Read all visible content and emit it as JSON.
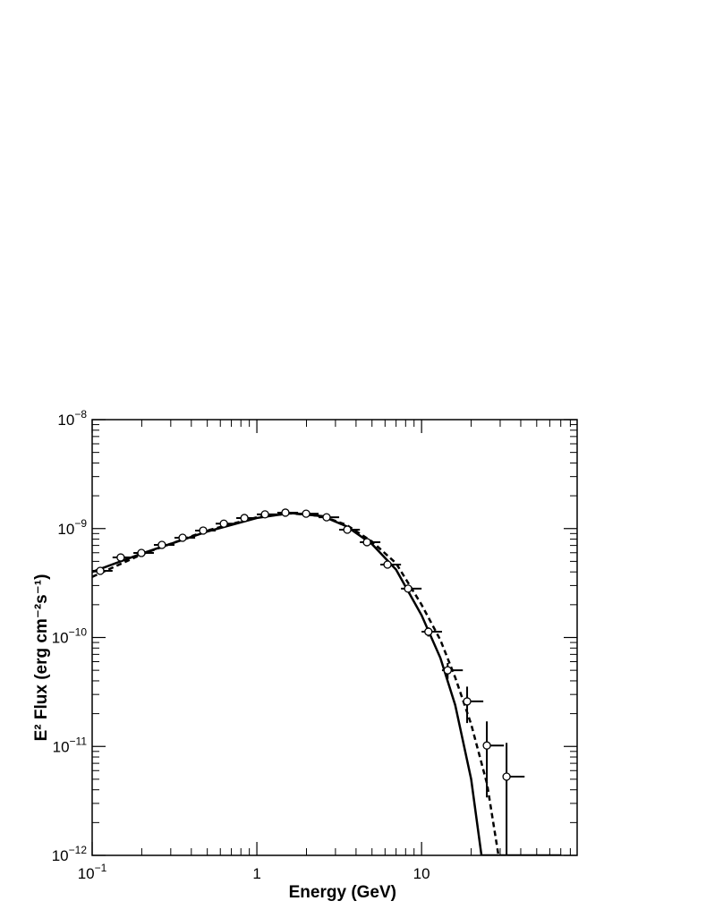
{
  "chart_data": {
    "type": "scatter",
    "xlabel": "Energy (GeV)",
    "ylabel": "E² Flux (erg cm⁻²s⁻¹)",
    "xlog": true,
    "ylog": true,
    "color": "#000000",
    "xlim": [
      0.1,
      88
    ],
    "ylim": [
      1e-12,
      1e-08
    ],
    "xticks": [
      {
        "value": 0.1,
        "label": "10",
        "exponent": "−1"
      },
      1,
      10
    ],
    "yticks": [
      {
        "value": 1e-12,
        "label": "10",
        "exponent": "−12"
      },
      {
        "value": 1e-11,
        "label": "10",
        "exponent": "−11"
      },
      {
        "value": 1e-10,
        "label": "10",
        "exponent": "−10"
      },
      {
        "value": 1e-09,
        "label": "10",
        "exponent": "−9"
      },
      {
        "value": 1e-08,
        "label": "10",
        "exponent": "−8"
      }
    ],
    "xminor": [
      0.2,
      0.3,
      0.4,
      0.5,
      0.6,
      0.7,
      0.8,
      0.9,
      2,
      3,
      4,
      5,
      6,
      7,
      8,
      9,
      20,
      30,
      40,
      50,
      60,
      70,
      80
    ],
    "yminor": [
      2e-12,
      3e-12,
      4e-12,
      5e-12,
      6e-12,
      7e-12,
      8e-12,
      9e-12,
      2e-11,
      3e-11,
      4e-11,
      5e-11,
      6e-11,
      7e-11,
      8e-11,
      9e-11,
      2e-10,
      3e-10,
      4e-10,
      5e-10,
      6e-10,
      7e-10,
      8e-10,
      9e-10,
      2e-09,
      3e-09,
      4e-09,
      5e-09,
      6e-09,
      7e-09,
      8e-09,
      9e-09
    ],
    "series": [
      {
        "type": "errorbar",
        "x": [
          0.112,
          0.149,
          0.199,
          0.265,
          0.354,
          0.472,
          0.63,
          0.84,
          1.12,
          1.49,
          1.99,
          2.65,
          3.54,
          4.66,
          6.21,
          8.28,
          11.0,
          14.4,
          18.9,
          24.9,
          32.8
        ],
        "x_edges": [
          0.1,
          0.133,
          0.178,
          0.237,
          0.316,
          0.422,
          0.562,
          0.75,
          1,
          1.33,
          1.78,
          2.37,
          3.16,
          4.22,
          5.62,
          7.5,
          10,
          13.3,
          17.8,
          23.7,
          31.6,
          42.2
        ],
        "values": [
          4.09e-10,
          5.43e-10,
          5.97e-10,
          7.08e-10,
          8.24e-10,
          9.59e-10,
          1.11e-09,
          1.25e-09,
          1.35e-09,
          1.4e-09,
          1.37e-09,
          1.27e-09,
          9.77e-10,
          7.5e-10,
          4.67e-10,
          2.81e-10,
          1.13e-10,
          5e-11,
          2.59e-11,
          1.02e-11,
          5.28e-12
        ],
        "errors": [
          1.5e-11,
          1.5e-11,
          1.5e-11,
          1.5e-11,
          1.5e-11,
          1.5e-11,
          1.5e-11,
          1.5e-11,
          1.5e-11,
          1.5e-11,
          1.5e-11,
          1.5e-11,
          1.5e-11,
          1.5e-11,
          1.5e-11,
          1.5e-11,
          1.1e-11,
          8.3e-12,
          9.5e-12,
          6.8e-12,
          5.5e-12
        ]
      },
      {
        "type": "line",
        "style": "solid",
        "x": [
          0.1,
          0.2,
          0.5,
          1.0,
          1.6,
          2.5,
          3.5,
          5,
          7,
          10,
          13,
          16,
          20,
          23.1,
          70.5
        ],
        "values": [
          4e-10,
          5.9e-10,
          9.4e-10,
          1.25e-09,
          1.39e-09,
          1.3e-09,
          1.05e-09,
          7.2e-10,
          4.2e-10,
          1.6e-10,
          6.5e-11,
          2.4e-11,
          5e-12,
          1e-12,
          1e-12
        ]
      },
      {
        "type": "line",
        "style": "dashed",
        "x": [
          0.1,
          0.2,
          0.5,
          1.0,
          1.6,
          2.5,
          3.5,
          5,
          7,
          10,
          13,
          16,
          20,
          25,
          29.3
        ],
        "values": [
          3.6e-10,
          5.8e-10,
          9.6e-10,
          1.27e-09,
          1.38e-09,
          1.3e-09,
          1.08e-09,
          7.6e-10,
          4.8e-10,
          2e-10,
          9.5e-11,
          4.3e-11,
          1.6e-11,
          4.5e-12,
          1e-12
        ]
      }
    ]
  }
}
